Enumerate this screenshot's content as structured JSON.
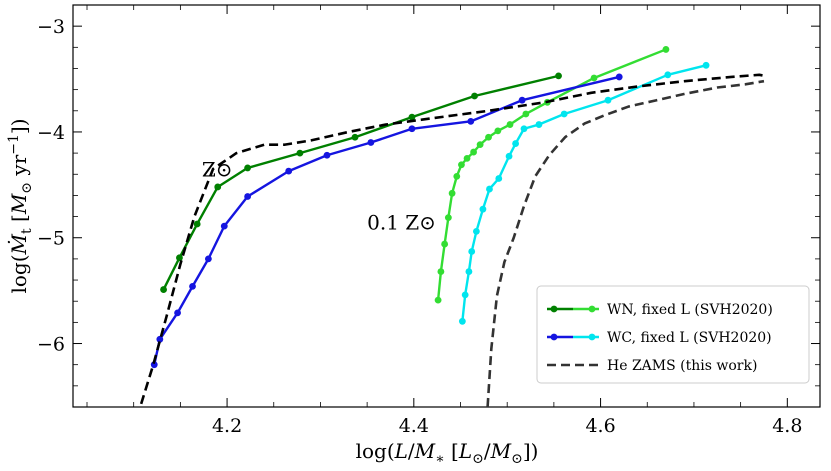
{
  "chart_data": {
    "type": "line",
    "xlabel": "log(L/M_* [L_⊙/M_⊙])",
    "ylabel": "log(Ṁ_t [M_⊙ yr^−1])",
    "xlim": [
      4.035,
      4.835
    ],
    "ylim": [
      -6.6,
      -2.8
    ],
    "x_ticks": [
      4.2,
      4.4,
      4.6,
      4.8
    ],
    "x_tick_labels": [
      "4.2",
      "4.4",
      "4.6",
      "4.8"
    ],
    "y_ticks": [
      -3,
      -4,
      -5,
      -6
    ],
    "y_tick_labels": [
      "−3",
      "−4",
      "−5",
      "−6"
    ],
    "grid": false,
    "legend": {
      "placement": "bottom-right"
    },
    "annotations": [
      {
        "text": "Z⊙",
        "x": 4.173,
        "y": -4.42
      },
      {
        "text": "0.1 Z⊙",
        "x": 4.35,
        "y": -4.92
      }
    ],
    "series": [
      {
        "name": "WN, fixed L (SVH2020)",
        "variant": "Z⊙",
        "color": "#008000",
        "style": "solid-markers",
        "x": [
          4.132,
          4.149,
          4.168,
          4.19,
          4.222,
          4.278,
          4.337,
          4.398,
          4.465,
          4.555
        ],
        "y": [
          -5.49,
          -5.19,
          -4.87,
          -4.52,
          -4.34,
          -4.2,
          -4.05,
          -3.86,
          -3.66,
          -3.47
        ]
      },
      {
        "name": "WN, fixed L (SVH2020)",
        "variant": "0.1 Z⊙",
        "color": "#33dd33",
        "style": "solid-markers",
        "x": [
          4.426,
          4.429,
          4.433,
          4.437,
          4.441,
          4.446,
          4.451,
          4.457,
          4.464,
          4.471,
          4.48,
          4.49,
          4.503,
          4.52,
          4.543,
          4.593,
          4.67
        ],
        "y": [
          -5.59,
          -5.32,
          -5.06,
          -4.81,
          -4.58,
          -4.42,
          -4.31,
          -4.25,
          -4.19,
          -4.12,
          -4.05,
          -3.99,
          -3.93,
          -3.83,
          -3.72,
          -3.49,
          -3.22
        ]
      },
      {
        "name": "WC, fixed L (SVH2020)",
        "variant": "Z⊙",
        "color": "#1515e0",
        "style": "solid-markers",
        "x": [
          4.122,
          4.128,
          4.147,
          4.163,
          4.18,
          4.197,
          4.222,
          4.266,
          4.307,
          4.354,
          4.398,
          4.461,
          4.516,
          4.62
        ],
        "y": [
          -6.2,
          -5.96,
          -5.71,
          -5.46,
          -5.2,
          -4.89,
          -4.61,
          -4.37,
          -4.22,
          -4.1,
          -3.97,
          -3.9,
          -3.7,
          -3.48
        ]
      },
      {
        "name": "WC, fixed L (SVH2020)",
        "variant": "0.1 Z⊙",
        "color": "#00e5ee",
        "style": "solid-markers",
        "x": [
          4.452,
          4.455,
          4.459,
          4.462,
          4.467,
          4.474,
          4.481,
          4.491,
          4.502,
          4.509,
          4.518,
          4.534,
          4.561,
          4.608,
          4.672,
          4.713
        ],
        "y": [
          -5.79,
          -5.54,
          -5.32,
          -5.13,
          -4.94,
          -4.73,
          -4.54,
          -4.44,
          -4.23,
          -4.11,
          -3.97,
          -3.93,
          -3.83,
          -3.7,
          -3.46,
          -3.37
        ]
      },
      {
        "name": "He ZAMS (this work)",
        "variant": "Z⊙",
        "color": "#000000",
        "style": "dashed",
        "x": [
          4.108,
          4.121,
          4.135,
          4.15,
          4.165,
          4.185,
          4.21,
          4.24,
          4.262,
          4.29,
          4.33,
          4.37,
          4.42,
          4.48,
          4.54,
          4.59,
          4.64,
          4.69,
          4.74,
          4.77,
          4.776
        ],
        "y": [
          -6.57,
          -6.2,
          -5.75,
          -5.25,
          -4.8,
          -4.35,
          -4.2,
          -4.12,
          -4.12,
          -4.08,
          -4.0,
          -3.93,
          -3.87,
          -3.8,
          -3.72,
          -3.63,
          -3.57,
          -3.52,
          -3.48,
          -3.46,
          -3.47
        ]
      },
      {
        "name": "He ZAMS (this work)",
        "variant": "0.1 Z⊙",
        "color": "#333333",
        "style": "dashed",
        "x": [
          4.479,
          4.483,
          4.489,
          4.497,
          4.507,
          4.518,
          4.53,
          4.545,
          4.562,
          4.583,
          4.605,
          4.63,
          4.66,
          4.69,
          4.725,
          4.755,
          4.775
        ],
        "y": [
          -6.6,
          -6.05,
          -5.55,
          -5.23,
          -5.0,
          -4.7,
          -4.42,
          -4.22,
          -4.05,
          -3.92,
          -3.84,
          -3.76,
          -3.7,
          -3.64,
          -3.58,
          -3.55,
          -3.52
        ]
      }
    ],
    "legend_entries": [
      {
        "label": "WN, fixed L (SVH2020)",
        "colors": [
          "#008000",
          "#33dd33"
        ],
        "style": "solid-markers"
      },
      {
        "label": "WC, fixed L (SVH2020)",
        "colors": [
          "#1515e0",
          "#00e5ee"
        ],
        "style": "solid-markers"
      },
      {
        "label": "He ZAMS (this work)",
        "colors": [
          "#333333"
        ],
        "style": "dashed"
      }
    ]
  }
}
